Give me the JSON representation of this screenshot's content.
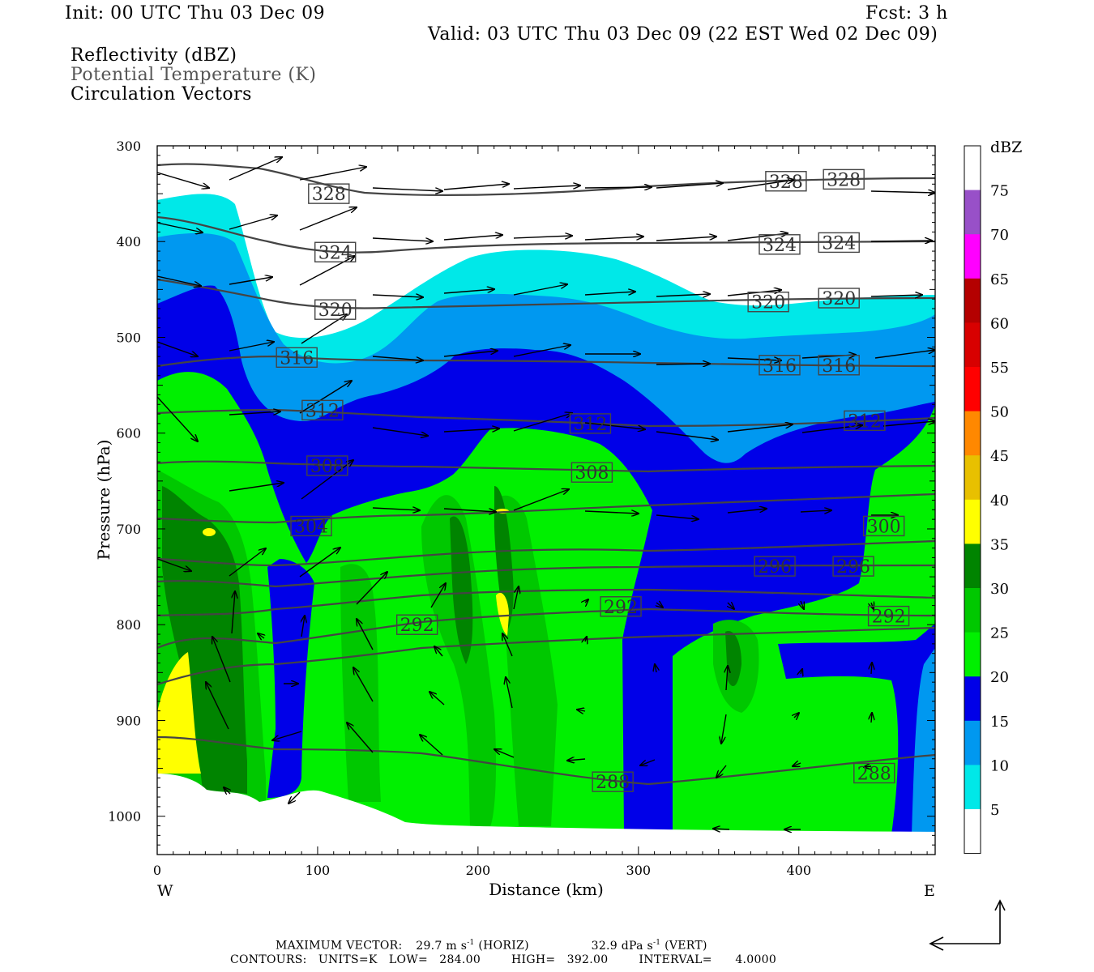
{
  "header": {
    "init": "Init: 00 UTC Thu 03 Dec 09",
    "fcst": "Fcst:    3 h",
    "valid": "Valid: 03 UTC Thu 03 Dec 09 (22 EST Wed 02 Dec 09)"
  },
  "fields": {
    "reflectivity": "Reflectivity (dBZ)",
    "theta": "Potential Temperature (K)",
    "vectors": "Circulation Vectors"
  },
  "footer": {
    "max_vector_label": "MAXIMUM VECTOR:",
    "max_horiz": "29.7 m s",
    "horiz_tag": "(HORIZ)",
    "max_vert": "32.9 dPa s",
    "vert_tag": "(VERT)",
    "exp": "-1",
    "contours": "CONTOURS:   UNITS=K   LOW=   284.00        HIGH=   392.00        INTERVAL=      4.0000"
  },
  "colors": {
    "white": "#ffffff",
    "cyan": "#00e8e8",
    "lightblue": "#0098f0",
    "blue": "#0000e8",
    "lime": "#00f000",
    "green": "#00c800",
    "darkgreen": "#008400",
    "yellow": "#ffff00",
    "contour": "#444444"
  },
  "chart_data": {
    "type": "heatmap",
    "xlabel": "Distance (km)",
    "ylabel": "Pressure (hPa)",
    "xlim": [
      0,
      485
    ],
    "ylim": [
      1040,
      300
    ],
    "x_ticks": [
      0,
      100,
      200,
      300,
      400
    ],
    "y_ticks": [
      300,
      400,
      500,
      600,
      700,
      800,
      900,
      1000
    ],
    "x_end_labels": {
      "left": "W",
      "right": "E"
    },
    "colorbar": {
      "title": "dBZ",
      "ticks": [
        5,
        10,
        15,
        20,
        25,
        30,
        35,
        40,
        45,
        50,
        55,
        60,
        65,
        70,
        75
      ],
      "colors": [
        "#ffffff",
        "#00e8e8",
        "#0098f0",
        "#0000e8",
        "#00f000",
        "#00c800",
        "#008400",
        "#ffff00",
        "#e8c000",
        "#ff8800",
        "#ff0000",
        "#d80000",
        "#b40000",
        "#ff00ff",
        "#9850c8",
        "#ffffff"
      ]
    },
    "theta_labels": [
      {
        "text": "328",
        "x": 107,
        "p": 350
      },
      {
        "text": "328",
        "x": 392,
        "p": 337
      },
      {
        "text": "328",
        "x": 428,
        "p": 335
      },
      {
        "text": "324",
        "x": 111,
        "p": 411
      },
      {
        "text": "324",
        "x": 388,
        "p": 403
      },
      {
        "text": "324",
        "x": 425,
        "p": 401
      },
      {
        "text": "320",
        "x": 111,
        "p": 471
      },
      {
        "text": "320",
        "x": 381,
        "p": 463
      },
      {
        "text": "320",
        "x": 425,
        "p": 459
      },
      {
        "text": "316",
        "x": 87,
        "p": 521
      },
      {
        "text": "316",
        "x": 388,
        "p": 529
      },
      {
        "text": "316",
        "x": 425,
        "p": 529
      },
      {
        "text": "312",
        "x": 103,
        "p": 576
      },
      {
        "text": "312",
        "x": 270,
        "p": 590
      },
      {
        "text": "312",
        "x": 441,
        "p": 587
      },
      {
        "text": "308",
        "x": 106,
        "p": 634
      },
      {
        "text": "308",
        "x": 271,
        "p": 641
      },
      {
        "text": "304",
        "x": 96,
        "p": 697
      },
      {
        "text": "300",
        "x": 453,
        "p": 697
      },
      {
        "text": "296",
        "x": 385,
        "p": 739
      },
      {
        "text": "296",
        "x": 434,
        "p": 739
      },
      {
        "text": "292",
        "x": 162,
        "p": 800
      },
      {
        "text": "292",
        "x": 289,
        "p": 781
      },
      {
        "text": "292",
        "x": 456,
        "p": 791
      },
      {
        "text": "288",
        "x": 284,
        "p": 964
      },
      {
        "text": "288",
        "x": 447,
        "p": 955
      }
    ]
  }
}
